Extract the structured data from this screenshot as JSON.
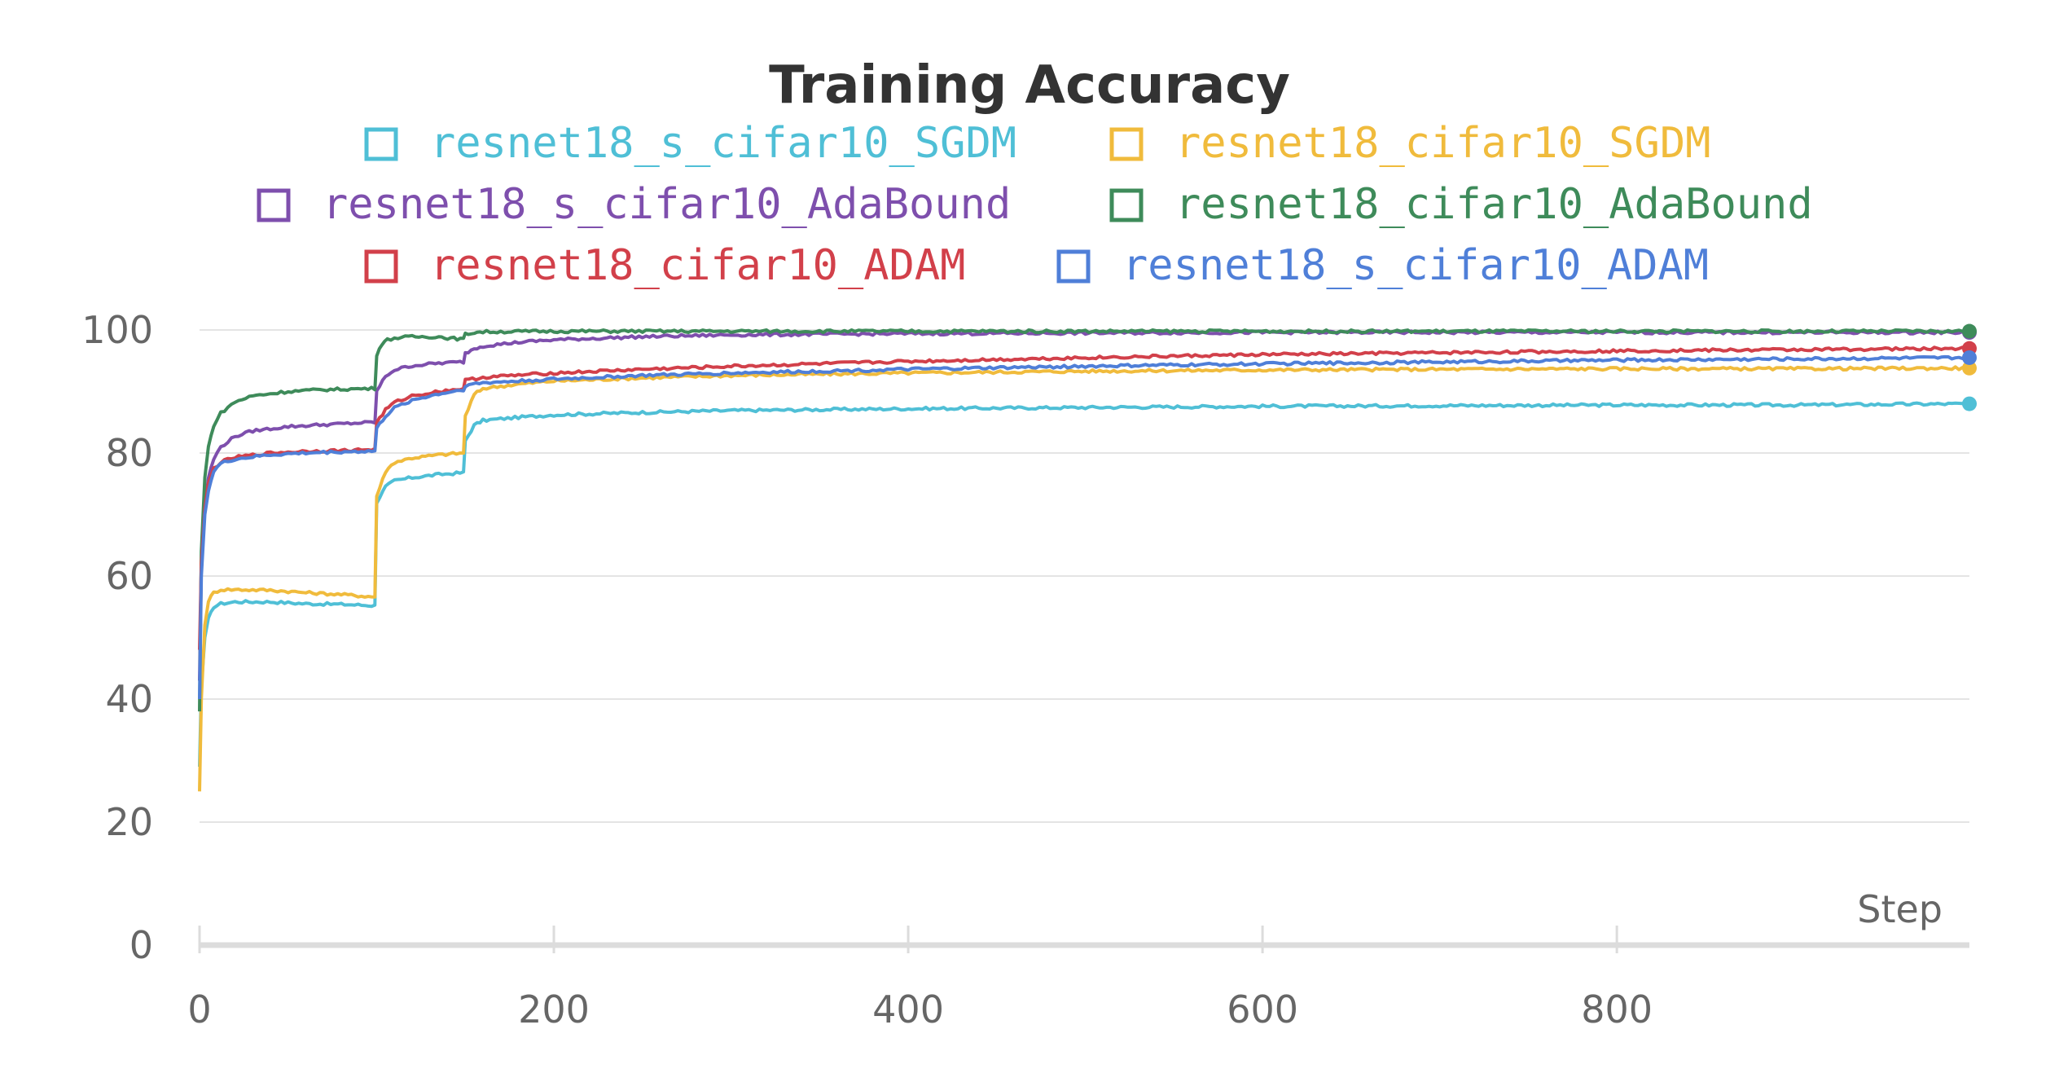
{
  "chart_data": {
    "type": "line",
    "title": "Training Accuracy",
    "xlabel": "Step",
    "ylabel": "",
    "xlim": [
      0,
      999
    ],
    "ylim": [
      0,
      100
    ],
    "x_ticks": [
      "0",
      "200",
      "400",
      "600",
      "800"
    ],
    "y_ticks": [
      "0",
      "20",
      "40",
      "60",
      "80",
      "100"
    ],
    "grid": true,
    "legend_position": "top",
    "series": [
      {
        "name": "resnet18_s_cifar10_SGDM",
        "color": "#4fbfd6",
        "points": [
          [
            0,
            29
          ],
          [
            1,
            42
          ],
          [
            3,
            50
          ],
          [
            5,
            53
          ],
          [
            8,
            55
          ],
          [
            12,
            55.5
          ],
          [
            20,
            55.8
          ],
          [
            40,
            55.8
          ],
          [
            60,
            55.5
          ],
          [
            80,
            55.4
          ],
          [
            99,
            55.2
          ],
          [
            100,
            72
          ],
          [
            105,
            74.5
          ],
          [
            110,
            75.5
          ],
          [
            120,
            76
          ],
          [
            135,
            76.5
          ],
          [
            149,
            76.8
          ],
          [
            150,
            82
          ],
          [
            155,
            84.5
          ],
          [
            160,
            85.3
          ],
          [
            180,
            85.8
          ],
          [
            200,
            86.2
          ],
          [
            250,
            86.6
          ],
          [
            300,
            86.9
          ],
          [
            400,
            87.2
          ],
          [
            500,
            87.4
          ],
          [
            600,
            87.6
          ],
          [
            700,
            87.7
          ],
          [
            800,
            87.8
          ],
          [
            900,
            87.8
          ],
          [
            999,
            88
          ]
        ]
      },
      {
        "name": "resnet18_cifar10_SGDM",
        "color": "#f0bb3c",
        "points": [
          [
            0,
            25
          ],
          [
            1,
            40
          ],
          [
            3,
            52
          ],
          [
            5,
            56
          ],
          [
            8,
            57.3
          ],
          [
            12,
            57.8
          ],
          [
            20,
            57.8
          ],
          [
            40,
            57.7
          ],
          [
            60,
            57.3
          ],
          [
            80,
            57
          ],
          [
            99,
            56.6
          ],
          [
            100,
            73
          ],
          [
            105,
            77
          ],
          [
            110,
            78.5
          ],
          [
            120,
            79.2
          ],
          [
            135,
            79.7
          ],
          [
            149,
            80
          ],
          [
            150,
            86
          ],
          [
            155,
            89.5
          ],
          [
            160,
            90.5
          ],
          [
            180,
            91.2
          ],
          [
            200,
            91.7
          ],
          [
            250,
            92.2
          ],
          [
            300,
            92.6
          ],
          [
            400,
            93
          ],
          [
            500,
            93.3
          ],
          [
            600,
            93.5
          ],
          [
            700,
            93.6
          ],
          [
            800,
            93.7
          ],
          [
            900,
            93.7
          ],
          [
            999,
            93.8
          ]
        ]
      },
      {
        "name": "resnet18_s_cifar10_AdaBound",
        "color": "#7e4fad",
        "points": [
          [
            0,
            43
          ],
          [
            1,
            62
          ],
          [
            3,
            71
          ],
          [
            5,
            76
          ],
          [
            8,
            79
          ],
          [
            12,
            81
          ],
          [
            20,
            82.7
          ],
          [
            30,
            83.6
          ],
          [
            50,
            84.3
          ],
          [
            70,
            84.6
          ],
          [
            99,
            85
          ],
          [
            100,
            90
          ],
          [
            105,
            92.5
          ],
          [
            110,
            93.5
          ],
          [
            120,
            94.2
          ],
          [
            135,
            94.6
          ],
          [
            149,
            94.8
          ],
          [
            150,
            96.2
          ],
          [
            155,
            97
          ],
          [
            160,
            97.4
          ],
          [
            180,
            98
          ],
          [
            200,
            98.4
          ],
          [
            250,
            98.9
          ],
          [
            300,
            99.2
          ],
          [
            400,
            99.4
          ],
          [
            500,
            99.5
          ],
          [
            600,
            99.6
          ],
          [
            700,
            99.6
          ],
          [
            800,
            99.6
          ],
          [
            900,
            99.6
          ],
          [
            999,
            99.6
          ]
        ]
      },
      {
        "name": "resnet18_cifar10_AdaBound",
        "color": "#3e8b5a",
        "points": [
          [
            0,
            38
          ],
          [
            1,
            64
          ],
          [
            3,
            76
          ],
          [
            5,
            81
          ],
          [
            8,
            84.5
          ],
          [
            12,
            86.5
          ],
          [
            20,
            88.3
          ],
          [
            30,
            89.3
          ],
          [
            50,
            90
          ],
          [
            70,
            90.3
          ],
          [
            99,
            90.5
          ],
          [
            100,
            96
          ],
          [
            103,
            97.8
          ],
          [
            106,
            98.4
          ],
          [
            110,
            98.7
          ],
          [
            120,
            98.9
          ],
          [
            135,
            98.9
          ],
          [
            140,
            98.7
          ],
          [
            149,
            98.5
          ],
          [
            150,
            99.3
          ],
          [
            155,
            99.6
          ],
          [
            160,
            99.7
          ],
          [
            200,
            99.8
          ],
          [
            400,
            99.8
          ],
          [
            600,
            99.8
          ],
          [
            800,
            99.8
          ],
          [
            999,
            99.8
          ]
        ]
      },
      {
        "name": "resnet18_cifar10_ADAM",
        "color": "#d2404a",
        "points": [
          [
            0,
            48
          ],
          [
            1,
            62
          ],
          [
            3,
            71
          ],
          [
            5,
            75
          ],
          [
            8,
            77.5
          ],
          [
            12,
            78.5
          ],
          [
            20,
            79.3
          ],
          [
            40,
            80
          ],
          [
            60,
            80.3
          ],
          [
            80,
            80.4
          ],
          [
            99,
            80.6
          ],
          [
            100,
            85
          ],
          [
            105,
            87
          ],
          [
            110,
            88.2
          ],
          [
            120,
            89.3
          ],
          [
            135,
            90
          ],
          [
            149,
            90.5
          ],
          [
            150,
            91.8
          ],
          [
            160,
            92.3
          ],
          [
            200,
            93
          ],
          [
            250,
            93.6
          ],
          [
            300,
            94.1
          ],
          [
            400,
            94.9
          ],
          [
            500,
            95.5
          ],
          [
            600,
            96
          ],
          [
            700,
            96.3
          ],
          [
            800,
            96.6
          ],
          [
            900,
            96.8
          ],
          [
            999,
            97
          ]
        ]
      },
      {
        "name": "resnet18_s_cifar10_ADAM",
        "color": "#4f7fd8",
        "points": [
          [
            0,
            40
          ],
          [
            1,
            60
          ],
          [
            3,
            70
          ],
          [
            5,
            74
          ],
          [
            8,
            77
          ],
          [
            12,
            78.3
          ],
          [
            20,
            79
          ],
          [
            40,
            79.7
          ],
          [
            60,
            80
          ],
          [
            80,
            80.2
          ],
          [
            99,
            80.3
          ],
          [
            100,
            84
          ],
          [
            105,
            86
          ],
          [
            110,
            87.3
          ],
          [
            120,
            88.6
          ],
          [
            135,
            89.6
          ],
          [
            149,
            90.3
          ],
          [
            150,
            91
          ],
          [
            160,
            91.4
          ],
          [
            200,
            92
          ],
          [
            250,
            92.6
          ],
          [
            300,
            93
          ],
          [
            400,
            93.6
          ],
          [
            500,
            94.1
          ],
          [
            600,
            94.5
          ],
          [
            700,
            94.8
          ],
          [
            800,
            95.1
          ],
          [
            900,
            95.3
          ],
          [
            999,
            95.5
          ]
        ]
      }
    ]
  }
}
